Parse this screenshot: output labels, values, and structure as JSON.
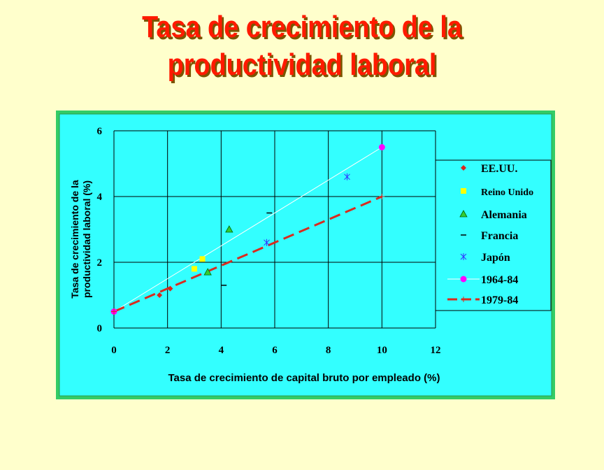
{
  "slide": {
    "title_line1": "Tasa de crecimiento de la",
    "title_line2": "productividad laboral"
  },
  "colors": {
    "slide_background": "#ffffcc",
    "title": "#ff1a00",
    "chart_frame": "#33cc66",
    "chart_background": "#33ffff",
    "line_1964_84": "#ffffff",
    "line_1979_84": "#d92b1f"
  },
  "chart_data": {
    "type": "scatter",
    "title": "",
    "xlabel": "Tasa de crecimiento de capital bruto por empleado (%)",
    "ylabel_lines": [
      "Tasa de crecimiento de la",
      "productividad laboral (%)"
    ],
    "xlim": [
      0,
      12
    ],
    "ylim": [
      0,
      6
    ],
    "xticks": [
      "0",
      "2",
      "4",
      "6",
      "8",
      "10",
      "12"
    ],
    "yticks": [
      "0",
      "2",
      "4",
      "6"
    ],
    "grid": true,
    "legend_position": "right",
    "series": [
      {
        "name": "EE.UU.",
        "marker": "diamond",
        "color": "#d9261c",
        "points": [
          [
            1.7,
            1.0
          ],
          [
            2.1,
            1.2
          ]
        ]
      },
      {
        "name": "Reino Unido",
        "marker": "square",
        "color": "#ffff00",
        "points": [
          [
            3.0,
            1.8
          ],
          [
            3.3,
            2.1
          ]
        ]
      },
      {
        "name": "Alemania",
        "marker": "triangle",
        "color": "#33cc33",
        "points": [
          [
            3.5,
            1.7
          ],
          [
            4.3,
            3.0
          ]
        ]
      },
      {
        "name": "Francia",
        "marker": "dash",
        "color": "#000000",
        "points": [
          [
            4.1,
            1.3
          ],
          [
            5.8,
            3.5
          ]
        ]
      },
      {
        "name": "Japón",
        "marker": "asterisk",
        "color": "#3333ff",
        "points": [
          [
            5.7,
            2.6
          ],
          [
            8.7,
            4.6
          ]
        ]
      },
      {
        "name": "1964-84",
        "marker": "circle",
        "color": "#ff00ff",
        "line_color": "#ffffff",
        "line_style": "solid",
        "points": [
          [
            0,
            0.5
          ],
          [
            10,
            5.5
          ]
        ]
      },
      {
        "name": "1979-84",
        "marker": "plus",
        "color": "#d92b1f",
        "line_color": "#d92b1f",
        "line_style": "dashed",
        "points": [
          [
            0,
            0.5
          ],
          [
            10,
            4.0
          ]
        ]
      }
    ]
  }
}
